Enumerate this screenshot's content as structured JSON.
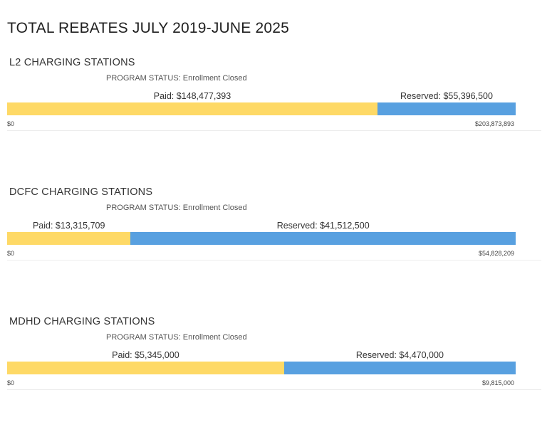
{
  "title": "TOTAL REBATES JULY 2019-JUNE 2025",
  "colors": {
    "paid": "#fed966",
    "reserved": "#58a0e0"
  },
  "chart_data": [
    {
      "type": "bar",
      "orientation": "horizontal-stacked",
      "title": "L2 CHARGING STATIONS",
      "status": "PROGRAM STATUS: Enrollment Closed",
      "series": [
        {
          "key": "paid",
          "label": "Paid: $148,477,393",
          "value": 148477393
        },
        {
          "key": "reserved",
          "label": "Reserved: $55,396,500",
          "value": 55396500
        }
      ],
      "axis_min_label": "$0",
      "axis_max_label": "$203,873,893",
      "xlim": [
        0,
        203873893
      ]
    },
    {
      "type": "bar",
      "orientation": "horizontal-stacked",
      "title": "DCFC CHARGING STATIONS",
      "status": "PROGRAM STATUS: Enrollment Closed",
      "series": [
        {
          "key": "paid",
          "label": "Paid: $13,315,709",
          "value": 13315709
        },
        {
          "key": "reserved",
          "label": "Reserved: $41,512,500",
          "value": 41512500
        }
      ],
      "axis_min_label": "$0",
      "axis_max_label": "$54,828,209",
      "xlim": [
        0,
        54828209
      ]
    },
    {
      "type": "bar",
      "orientation": "horizontal-stacked",
      "title": "MDHD CHARGING STATIONS",
      "status": "PROGRAM STATUS: Enrollment Closed",
      "series": [
        {
          "key": "paid",
          "label": "Paid: $5,345,000",
          "value": 5345000
        },
        {
          "key": "reserved",
          "label": "Reserved: $4,470,000",
          "value": 4470000
        }
      ],
      "axis_min_label": "$0",
      "axis_max_label": "$9,815,000",
      "xlim": [
        0,
        9815000
      ]
    }
  ]
}
